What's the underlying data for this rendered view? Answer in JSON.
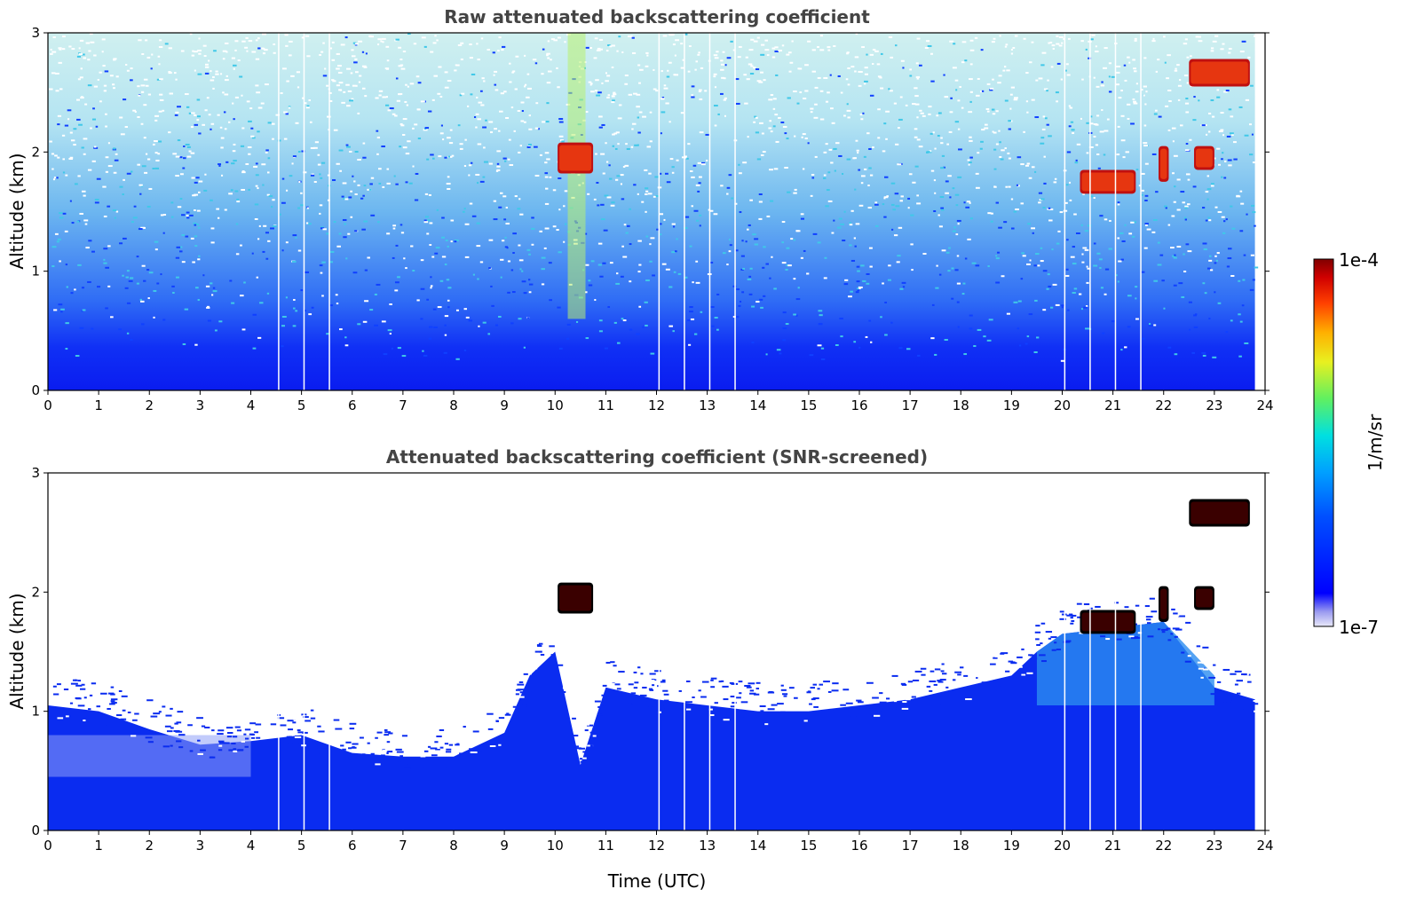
{
  "chart_data": {
    "type": "heatmap",
    "colorbar": {
      "max_label": "1e-4",
      "min_label": "1e-7",
      "unit_label": "1/m/sr",
      "colormap": "jet",
      "scale": "log",
      "range": [
        1e-07,
        0.0001
      ]
    },
    "x_tick_labels": [
      "0",
      "1",
      "2",
      "3",
      "4",
      "5",
      "6",
      "7",
      "8",
      "9",
      "10",
      "11",
      "12",
      "13",
      "14",
      "15",
      "16",
      "17",
      "18",
      "19",
      "20",
      "21",
      "22",
      "23",
      "24"
    ],
    "y_tick_labels": [
      "0",
      "1",
      "2",
      "3"
    ],
    "gaps_hours": [
      4.55,
      5.05,
      5.55,
      12.05,
      12.55,
      13.05,
      13.55,
      20.05,
      20.55,
      21.05,
      21.55
    ],
    "data_end_hour": 23.8,
    "panels": [
      {
        "id": "raw",
        "title": "Raw attenuated backscattering coefficient",
        "ylabel": "Altitude (km)",
        "xlabel": "",
        "xlim": [
          0,
          24
        ],
        "ylim": [
          0,
          3
        ],
        "clouds": [
          {
            "t0": 10.05,
            "t1": 10.75,
            "z0": 1.82,
            "z1": 2.08
          },
          {
            "t0": 20.35,
            "t1": 21.45,
            "z0": 1.65,
            "z1": 1.85
          },
          {
            "t0": 21.9,
            "t1": 22.1,
            "z0": 1.75,
            "z1": 2.05
          },
          {
            "t0": 22.6,
            "t1": 23.0,
            "z0": 1.85,
            "z1": 2.05
          },
          {
            "t0": 22.5,
            "t1": 23.7,
            "z0": 2.55,
            "z1": 2.78
          }
        ]
      },
      {
        "id": "screened",
        "title": "Attenuated backscattering coefficient (SNR-screened)",
        "ylabel": "Altitude (km)",
        "xlabel": "Time (UTC)",
        "xlim": [
          0,
          24
        ],
        "ylim": [
          0,
          3
        ],
        "clouds": [
          {
            "t0": 10.05,
            "t1": 10.75,
            "z0": 1.82,
            "z1": 2.08
          },
          {
            "t0": 20.35,
            "t1": 21.45,
            "z0": 1.65,
            "z1": 1.85
          },
          {
            "t0": 21.9,
            "t1": 22.1,
            "z0": 1.75,
            "z1": 2.05
          },
          {
            "t0": 22.6,
            "t1": 23.0,
            "z0": 1.85,
            "z1": 2.05
          },
          {
            "t0": 22.5,
            "t1": 23.7,
            "z0": 2.55,
            "z1": 2.78
          }
        ],
        "boundary_layer_top_km": [
          [
            0,
            1.05
          ],
          [
            1,
            1.0
          ],
          [
            2,
            0.85
          ],
          [
            3,
            0.72
          ],
          [
            4,
            0.75
          ],
          [
            5,
            0.8
          ],
          [
            6,
            0.65
          ],
          [
            7,
            0.62
          ],
          [
            8,
            0.62
          ],
          [
            9,
            0.82
          ],
          [
            9.5,
            1.3
          ],
          [
            10,
            1.5
          ],
          [
            10.5,
            0.55
          ],
          [
            11,
            1.2
          ],
          [
            12,
            1.1
          ],
          [
            13,
            1.05
          ],
          [
            14,
            1.0
          ],
          [
            15,
            1.0
          ],
          [
            16,
            1.05
          ],
          [
            17,
            1.1
          ],
          [
            18,
            1.2
          ],
          [
            19,
            1.3
          ],
          [
            19.5,
            1.5
          ],
          [
            20,
            1.65
          ],
          [
            21,
            1.7
          ],
          [
            22,
            1.75
          ],
          [
            23,
            1.2
          ],
          [
            23.8,
            1.1
          ]
        ]
      }
    ]
  }
}
